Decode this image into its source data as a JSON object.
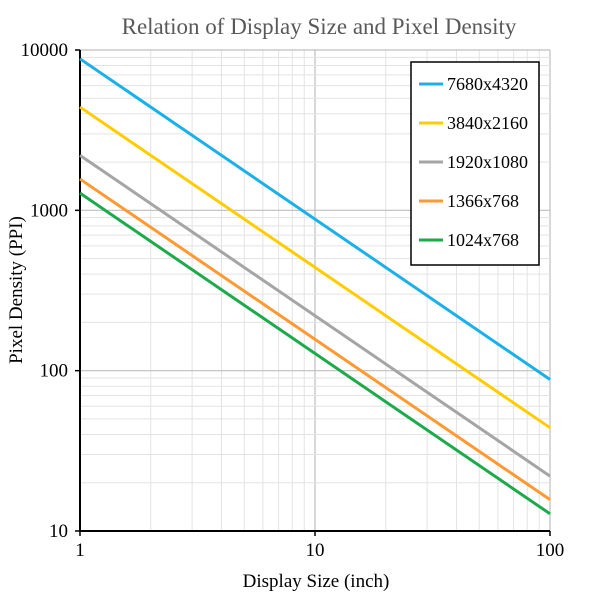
{
  "chart_data": {
    "type": "line",
    "title": "Relation of Display Size and Pixel Density",
    "xlabel": "Display Size (inch)",
    "ylabel": "Pixel Density (PPI)",
    "x_scale": "log",
    "y_scale": "log",
    "xlim": [
      1,
      100
    ],
    "ylim": [
      10,
      10000
    ],
    "x_ticks": [
      "1",
      "10",
      "100"
    ],
    "y_ticks": [
      "10",
      "100",
      "1000",
      "10000"
    ],
    "grid": true,
    "legend_position": "top-right",
    "series": [
      {
        "name": "7680x4320",
        "color": "#1cb0e8",
        "x": [
          1,
          100
        ],
        "y": [
          8811,
          88.1
        ]
      },
      {
        "name": "3840x2160",
        "color": "#ffcc00",
        "x": [
          1,
          100
        ],
        "y": [
          4406,
          44.1
        ]
      },
      {
        "name": "1920x1080",
        "color": "#a5a5a5",
        "x": [
          1,
          100
        ],
        "y": [
          2203,
          22.0
        ]
      },
      {
        "name": "1366x768",
        "color": "#ff9933",
        "x": [
          1,
          100
        ],
        "y": [
          1567,
          15.7
        ]
      },
      {
        "name": "1024x768",
        "color": "#1daa4a",
        "x": [
          1,
          100
        ],
        "y": [
          1280,
          12.8
        ]
      }
    ]
  }
}
